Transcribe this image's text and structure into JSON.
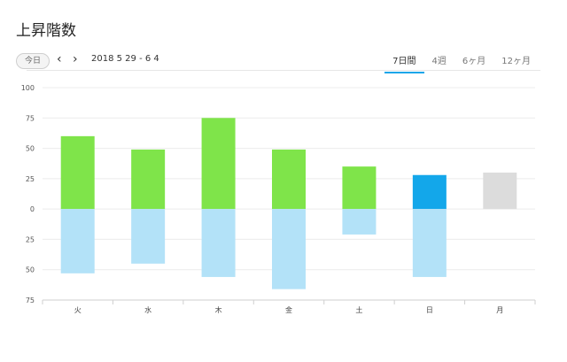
{
  "title": "上昇階数",
  "toolbar": {
    "today_label": "今日",
    "date_range": "2018 5 29 - 6 4",
    "tabs": [
      {
        "label": "7日間",
        "active": true
      },
      {
        "label": "4週",
        "active": false
      },
      {
        "label": "6ヶ月",
        "active": false
      },
      {
        "label": "12ヶ月",
        "active": false
      }
    ]
  },
  "chart_data": {
    "type": "bar",
    "categories": [
      "火",
      "水",
      "木",
      "金",
      "土",
      "日",
      "月"
    ],
    "series": [
      {
        "values": [
          60,
          49,
          75,
          49,
          35,
          28,
          30
        ]
      },
      {
        "values": [
          -53,
          -45,
          -56,
          -66,
          -21,
          -56,
          0
        ]
      }
    ],
    "ylim": [
      -75,
      100
    ],
    "yticks": [
      100,
      75,
      50,
      25,
      0,
      -25,
      -50,
      -75
    ],
    "ytick_labels": [
      "100",
      "75",
      "50",
      "25",
      "0",
      "25",
      "50",
      "75"
    ],
    "grid": true,
    "colors": {
      "up": "#7fe44a",
      "down": "#b3e2f8",
      "up_highlight": "#13a7ea",
      "future": "#dcdcdc",
      "grid": "#ececec"
    },
    "highlight_index": 5,
    "future_index": 6
  }
}
